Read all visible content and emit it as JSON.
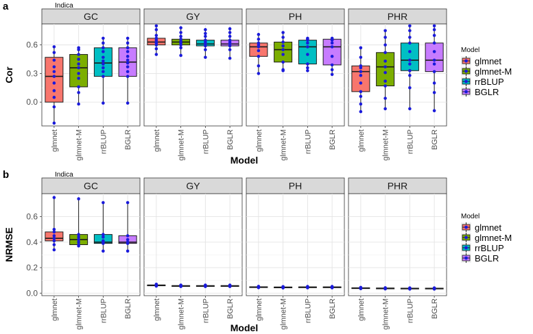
{
  "chart_data": [
    {
      "type": "box",
      "panel_letter": "a",
      "group_title": "Indica",
      "facets": [
        "GC",
        "GY",
        "PH",
        "PHR"
      ],
      "categories": [
        "glmnet",
        "glmnet-M",
        "rrBLUP",
        "BGLR"
      ],
      "xlabel": "Model",
      "ylabel": "Cor",
      "ylim": [
        -0.25,
        0.82
      ],
      "yticks": [
        0.0,
        0.3,
        0.6
      ],
      "ytick_labels": [
        "0.0",
        "0.3",
        "0.6"
      ],
      "grid": true,
      "legend_position": "right",
      "legend_title": "Model",
      "legend": [
        "glmnet",
        "glmnet-M",
        "rrBLUP",
        "BGLR"
      ],
      "colors": [
        "#F8766D",
        "#7CAE00",
        "#00BFC4",
        "#C77CFF"
      ],
      "point_color": "#1a1adb",
      "boxes": [
        [
          {
            "min": -0.22,
            "q1": 0.0,
            "median": 0.27,
            "q3": 0.47,
            "max": 0.58,
            "points": [
              -0.22,
              -0.05,
              0.05,
              0.12,
              0.2,
              0.27,
              0.32,
              0.37,
              0.44,
              0.52,
              0.58
            ]
          },
          {
            "min": -0.02,
            "q1": 0.16,
            "median": 0.36,
            "q3": 0.5,
            "max": 0.57,
            "points": [
              -0.02,
              0.1,
              0.16,
              0.25,
              0.3,
              0.36,
              0.4,
              0.45,
              0.5,
              0.55,
              0.57
            ]
          },
          {
            "min": -0.01,
            "q1": 0.27,
            "median": 0.41,
            "q3": 0.57,
            "max": 0.67,
            "points": [
              -0.01,
              0.27,
              0.32,
              0.36,
              0.4,
              0.43,
              0.47,
              0.53,
              0.57,
              0.62,
              0.67
            ]
          },
          {
            "min": -0.01,
            "q1": 0.27,
            "median": 0.42,
            "q3": 0.57,
            "max": 0.67,
            "points": [
              -0.01,
              0.27,
              0.32,
              0.37,
              0.41,
              0.44,
              0.48,
              0.53,
              0.57,
              0.62,
              0.67
            ]
          }
        ],
        [
          {
            "min": 0.5,
            "q1": 0.6,
            "median": 0.63,
            "q3": 0.67,
            "max": 0.8,
            "points": [
              0.5,
              0.56,
              0.6,
              0.62,
              0.63,
              0.65,
              0.67,
              0.7,
              0.76,
              0.8
            ]
          },
          {
            "min": 0.49,
            "q1": 0.6,
            "median": 0.63,
            "q3": 0.66,
            "max": 0.78,
            "points": [
              0.49,
              0.57,
              0.6,
              0.62,
              0.64,
              0.66,
              0.69,
              0.73,
              0.78
            ]
          },
          {
            "min": 0.47,
            "q1": 0.59,
            "median": 0.61,
            "q3": 0.65,
            "max": 0.76,
            "points": [
              0.47,
              0.55,
              0.59,
              0.61,
              0.63,
              0.65,
              0.69,
              0.72,
              0.76
            ]
          },
          {
            "min": 0.46,
            "q1": 0.59,
            "median": 0.61,
            "q3": 0.65,
            "max": 0.77,
            "points": [
              0.46,
              0.55,
              0.59,
              0.61,
              0.63,
              0.65,
              0.69,
              0.73,
              0.77
            ]
          }
        ],
        [
          {
            "min": 0.3,
            "q1": 0.48,
            "median": 0.58,
            "q3": 0.62,
            "max": 0.71,
            "points": [
              0.3,
              0.38,
              0.48,
              0.54,
              0.58,
              0.6,
              0.62,
              0.66,
              0.71
            ]
          },
          {
            "min": 0.33,
            "q1": 0.42,
            "median": 0.55,
            "q3": 0.63,
            "max": 0.73,
            "points": [
              0.33,
              0.34,
              0.42,
              0.5,
              0.55,
              0.59,
              0.63,
              0.68,
              0.73
            ]
          },
          {
            "min": 0.33,
            "q1": 0.4,
            "median": 0.58,
            "q3": 0.65,
            "max": 0.67,
            "points": [
              0.33,
              0.36,
              0.4,
              0.5,
              0.58,
              0.62,
              0.65,
              0.66,
              0.67
            ]
          },
          {
            "min": 0.29,
            "q1": 0.39,
            "median": 0.58,
            "q3": 0.66,
            "max": 0.67,
            "points": [
              0.29,
              0.34,
              0.39,
              0.48,
              0.58,
              0.62,
              0.65,
              0.66,
              0.67
            ]
          }
        ],
        [
          {
            "min": -0.1,
            "q1": 0.11,
            "median": 0.32,
            "q3": 0.38,
            "max": 0.57,
            "points": [
              -0.1,
              -0.02,
              0.06,
              0.11,
              0.2,
              0.28,
              0.32,
              0.36,
              0.38,
              0.47,
              0.57
            ]
          },
          {
            "min": -0.07,
            "q1": 0.17,
            "median": 0.37,
            "q3": 0.52,
            "max": 0.75,
            "points": [
              -0.07,
              0.04,
              0.17,
              0.22,
              0.31,
              0.37,
              0.43,
              0.52,
              0.6,
              0.68,
              0.75
            ]
          },
          {
            "min": -0.07,
            "q1": 0.33,
            "median": 0.44,
            "q3": 0.62,
            "max": 0.8,
            "points": [
              -0.07,
              0.15,
              0.28,
              0.33,
              0.4,
              0.44,
              0.53,
              0.62,
              0.68,
              0.75,
              0.8
            ]
          },
          {
            "min": -0.09,
            "q1": 0.32,
            "median": 0.44,
            "q3": 0.62,
            "max": 0.8,
            "points": [
              -0.09,
              0.1,
              0.2,
              0.32,
              0.4,
              0.44,
              0.53,
              0.62,
              0.7,
              0.76,
              0.8
            ]
          }
        ]
      ]
    },
    {
      "type": "box",
      "panel_letter": "b",
      "group_title": "Indica",
      "facets": [
        "GC",
        "GY",
        "PH",
        "PHR"
      ],
      "categories": [
        "glmnet",
        "glmnet-M",
        "rrBLUP",
        "BGLR"
      ],
      "xlabel": "Model",
      "ylabel": "NRMSE",
      "ylim": [
        -0.02,
        0.78
      ],
      "yticks": [
        0.0,
        0.2,
        0.4,
        0.6
      ],
      "ytick_labels": [
        "0.0",
        "0.2",
        "0.4",
        "0.6"
      ],
      "grid": true,
      "legend_position": "right",
      "legend_title": "Model",
      "legend": [
        "glmnet",
        "glmnet-M",
        "rrBLUP",
        "BGLR"
      ],
      "colors": [
        "#F8766D",
        "#7CAE00",
        "#00BFC4",
        "#C77CFF"
      ],
      "point_color": "#1a1adb",
      "boxes": [
        [
          {
            "min": 0.34,
            "q1": 0.41,
            "median": 0.43,
            "q3": 0.48,
            "max": 0.75,
            "points": [
              0.34,
              0.38,
              0.41,
              0.43,
              0.45,
              0.48,
              0.5,
              0.75
            ]
          },
          {
            "min": 0.37,
            "q1": 0.38,
            "median": 0.42,
            "q3": 0.46,
            "max": 0.74,
            "points": [
              0.37,
              0.38,
              0.4,
              0.42,
              0.44,
              0.46,
              0.74
            ]
          },
          {
            "min": 0.33,
            "q1": 0.39,
            "median": 0.4,
            "q3": 0.46,
            "max": 0.71,
            "points": [
              0.33,
              0.39,
              0.4,
              0.41,
              0.44,
              0.46,
              0.71
            ]
          },
          {
            "min": 0.33,
            "q1": 0.39,
            "median": 0.4,
            "q3": 0.45,
            "max": 0.71,
            "points": [
              0.33,
              0.39,
              0.4,
              0.42,
              0.45,
              0.71
            ]
          }
        ],
        [
          {
            "min": 0.055,
            "q1": 0.06,
            "median": 0.062,
            "q3": 0.064,
            "max": 0.07,
            "points": [
              0.055,
              0.06,
              0.062,
              0.065,
              0.07
            ]
          },
          {
            "min": 0.052,
            "q1": 0.055,
            "median": 0.057,
            "q3": 0.059,
            "max": 0.063,
            "points": [
              0.052,
              0.055,
              0.057,
              0.06,
              0.063
            ]
          },
          {
            "min": 0.052,
            "q1": 0.055,
            "median": 0.057,
            "q3": 0.059,
            "max": 0.063,
            "points": [
              0.052,
              0.055,
              0.057,
              0.06,
              0.063
            ]
          },
          {
            "min": 0.052,
            "q1": 0.055,
            "median": 0.057,
            "q3": 0.059,
            "max": 0.063,
            "points": [
              0.052,
              0.055,
              0.057,
              0.06,
              0.063
            ]
          }
        ],
        [
          {
            "min": 0.043,
            "q1": 0.046,
            "median": 0.048,
            "q3": 0.05,
            "max": 0.053,
            "points": [
              0.043,
              0.046,
              0.048,
              0.05,
              0.053
            ]
          },
          {
            "min": 0.041,
            "q1": 0.044,
            "median": 0.046,
            "q3": 0.048,
            "max": 0.051,
            "points": [
              0.041,
              0.044,
              0.046,
              0.048,
              0.051
            ]
          },
          {
            "min": 0.042,
            "q1": 0.045,
            "median": 0.047,
            "q3": 0.049,
            "max": 0.052,
            "points": [
              0.042,
              0.045,
              0.047,
              0.049,
              0.052
            ]
          },
          {
            "min": 0.042,
            "q1": 0.045,
            "median": 0.047,
            "q3": 0.049,
            "max": 0.052,
            "points": [
              0.042,
              0.045,
              0.047,
              0.049,
              0.052
            ]
          }
        ],
        [
          {
            "min": 0.035,
            "q1": 0.038,
            "median": 0.04,
            "q3": 0.042,
            "max": 0.045,
            "points": [
              0.035,
              0.038,
              0.04,
              0.042,
              0.045
            ]
          },
          {
            "min": 0.033,
            "q1": 0.036,
            "median": 0.038,
            "q3": 0.04,
            "max": 0.042,
            "points": [
              0.033,
              0.036,
              0.038,
              0.04,
              0.042
            ]
          },
          {
            "min": 0.032,
            "q1": 0.035,
            "median": 0.037,
            "q3": 0.039,
            "max": 0.041,
            "points": [
              0.032,
              0.035,
              0.037,
              0.039,
              0.041
            ]
          },
          {
            "min": 0.032,
            "q1": 0.035,
            "median": 0.037,
            "q3": 0.039,
            "max": 0.041,
            "points": [
              0.032,
              0.035,
              0.037,
              0.039,
              0.041
            ]
          }
        ]
      ]
    }
  ]
}
